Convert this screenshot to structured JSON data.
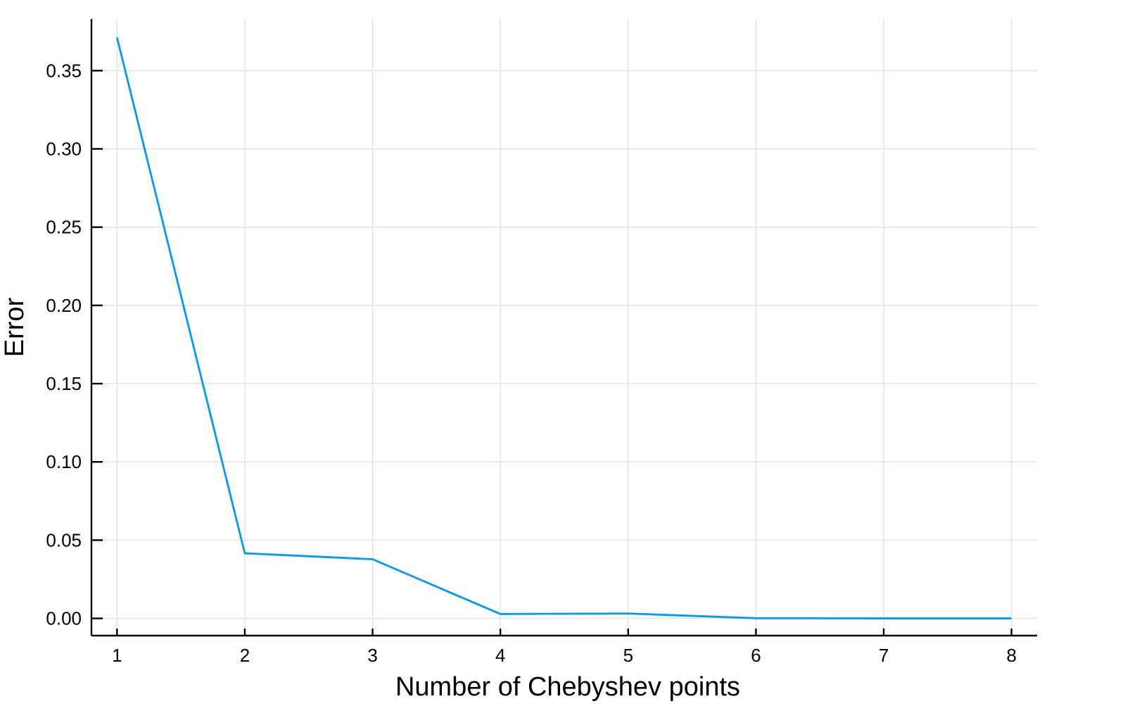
{
  "chart_data": {
    "type": "line",
    "title": "",
    "xlabel": "Number of Chebyshev points",
    "ylabel": "Error",
    "xlim": [
      0.8,
      8.2
    ],
    "ylim": [
      -0.011,
      0.383
    ],
    "x_ticks": [
      1,
      2,
      3,
      4,
      5,
      6,
      7,
      8
    ],
    "x_tick_labels": [
      "1",
      "2",
      "3",
      "4",
      "5",
      "6",
      "7",
      "8"
    ],
    "y_ticks": [
      0.0,
      0.05,
      0.1,
      0.15,
      0.2,
      0.25,
      0.3,
      0.35
    ],
    "y_tick_labels": [
      "0.00",
      "0.05",
      "0.10",
      "0.15",
      "0.20",
      "0.25",
      "0.30",
      "0.35"
    ],
    "grid": true,
    "legend": "none",
    "series": [
      {
        "color": "#009af9",
        "x": [
          1,
          2,
          3,
          4,
          5,
          6,
          7,
          8
        ],
        "y": [
          0.3712,
          0.0416,
          0.0378,
          0.0028,
          0.0031,
          0.0001,
          0.0,
          0.0
        ]
      }
    ]
  }
}
